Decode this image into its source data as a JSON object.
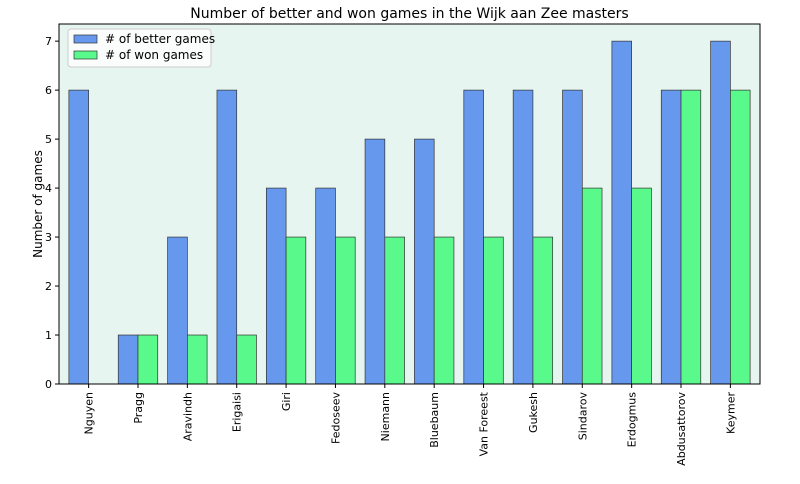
{
  "chart_data": {
    "type": "bar",
    "title": "Number of better and won games in the Wijk aan Zee masters",
    "xlabel": "",
    "ylabel": "Number of games",
    "categories": [
      "Nguyen",
      "Pragg",
      "Aravindh",
      "Erigaisi",
      "Giri",
      "Fedoseev",
      "Niemann",
      "Bluebaum",
      "Van Foreest",
      "Gukesh",
      "Sindarov",
      "Erdogmus",
      "Abdusattorov",
      "Keymer"
    ],
    "series": [
      {
        "name": "# of better games",
        "color": "#6699ee",
        "values": [
          6,
          1,
          3,
          6,
          4,
          4,
          5,
          5,
          6,
          6,
          6,
          7,
          6,
          7
        ]
      },
      {
        "name": "# of won games",
        "color": "#5af98c",
        "values": [
          0,
          1,
          1,
          1,
          3,
          3,
          3,
          3,
          3,
          3,
          4,
          4,
          6,
          6
        ]
      }
    ],
    "yticks": [
      "0",
      "1",
      "2",
      "3",
      "4",
      "5",
      "6",
      "7"
    ],
    "ylim": [
      0,
      7.35
    ],
    "grid": false,
    "legend": "top-left",
    "plot_background": "#e6f5ef"
  }
}
